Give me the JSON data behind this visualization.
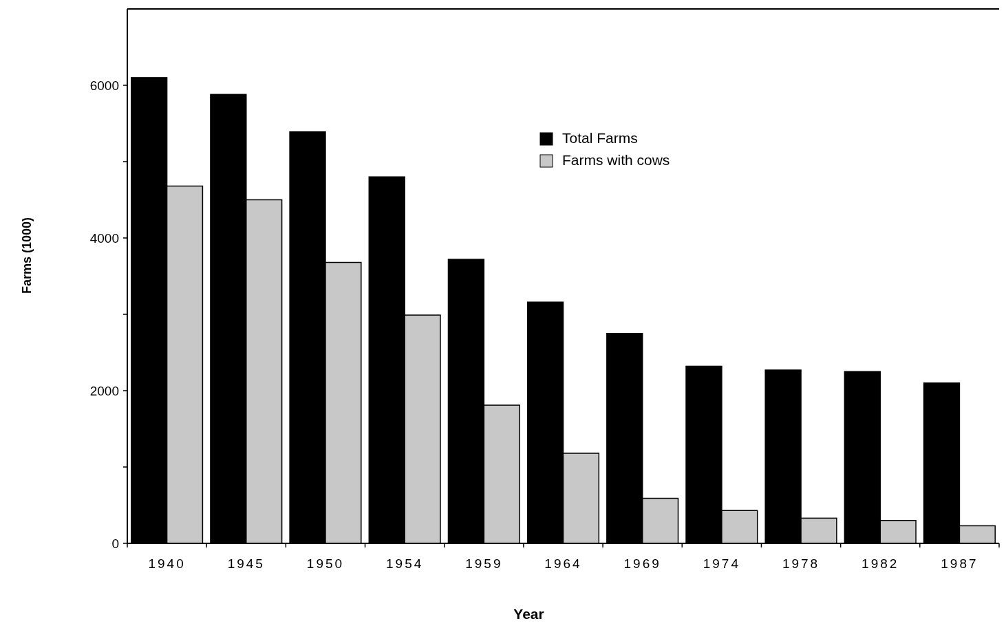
{
  "chart_data": {
    "type": "bar",
    "xlabel": "Year",
    "ylabel": "Farms (1000)",
    "categories": [
      "1940",
      "1945",
      "1950",
      "1954",
      "1959",
      "1964",
      "1969",
      "1974",
      "1978",
      "1982",
      "1987"
    ],
    "series": [
      {
        "name": "Total Farms",
        "color": "#000000",
        "values": [
          6100,
          5880,
          5390,
          4800,
          3720,
          3160,
          2750,
          2320,
          2270,
          2250,
          2100
        ]
      },
      {
        "name": "Farms with cows",
        "color": "#c8c8c8",
        "values": [
          4680,
          4500,
          3680,
          2990,
          1810,
          1180,
          590,
          430,
          330,
          300,
          230
        ]
      }
    ],
    "ylim": [
      0,
      7000
    ],
    "yticks": [
      0,
      {
        "value": 1000,
        "label": null
      },
      2000,
      {
        "value": 3000,
        "label": null
      },
      4000,
      {
        "value": 5000,
        "label": null
      },
      6000
    ],
    "grid": false,
    "legend": "top"
  }
}
